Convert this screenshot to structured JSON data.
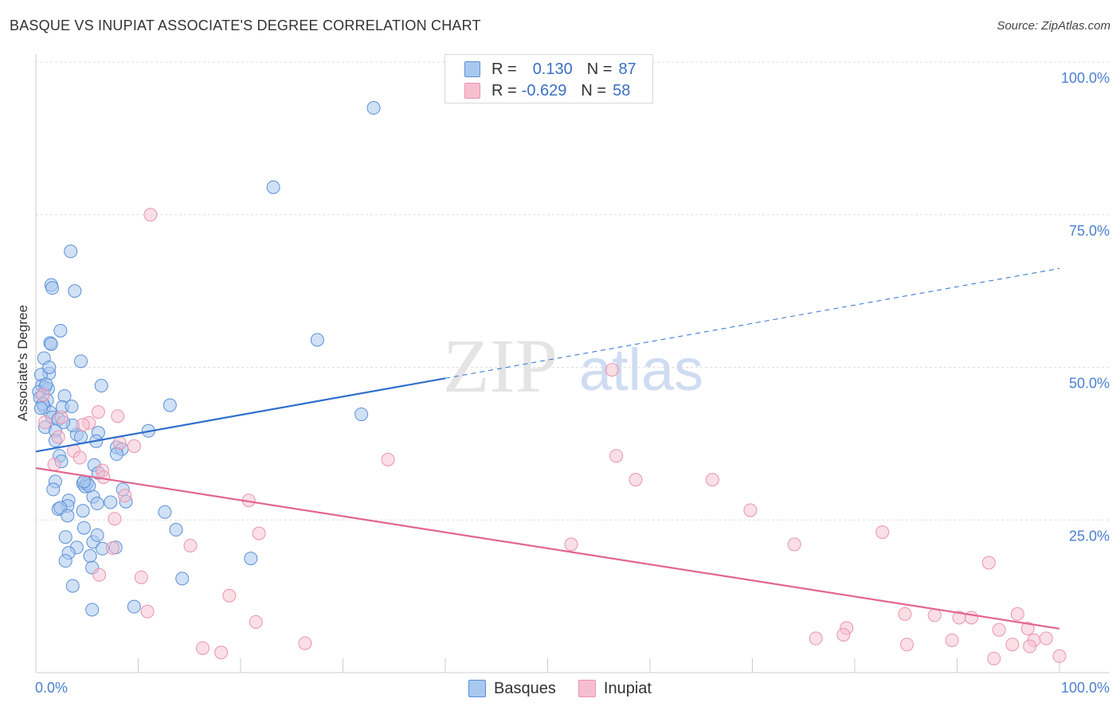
{
  "title": "BASQUE VS INUPIAT ASSOCIATE'S DEGREE CORRELATION CHART",
  "source": "Source: ZipAtlas.com",
  "watermark": {
    "zip": "ZIP",
    "atlas": "atlas"
  },
  "legend": {
    "rows": [
      {
        "r_label": "R =",
        "r_value": "0.130",
        "n_label": "N =",
        "n_value": "87"
      },
      {
        "r_label": "R =",
        "r_value": "-0.629",
        "n_label": "N =",
        "n_value": "58"
      }
    ]
  },
  "colors": {
    "basques_fill": "#a9c8ef",
    "basques_stroke": "#5b8fd6",
    "basques_line": "#2f6fcc",
    "inupiat_fill": "#f6bfd0",
    "inupiat_stroke": "#ea93ae",
    "inupiat_line": "#e2668f",
    "axis_text": "#4a7fd0",
    "grid": "#dedede"
  },
  "chart_data": {
    "type": "scatter",
    "title": "BASQUE VS INUPIAT ASSOCIATE'S DEGREE CORRELATION CHART",
    "xlabel": "",
    "ylabel": "Associate's Degree",
    "xlim": [
      0,
      100
    ],
    "ylim": [
      0,
      100
    ],
    "x_tick_labels": [
      "0.0%",
      "100.0%"
    ],
    "y_tick_labels": [
      "25.0%",
      "50.0%",
      "75.0%",
      "100.0%"
    ],
    "y_ticks": [
      25,
      50,
      75,
      100
    ],
    "grid": true,
    "series": [
      {
        "name": "Basques",
        "r": 0.13,
        "n": 87,
        "trend": {
          "x0": 0,
          "y0": 36.2,
          "x1": 40,
          "y1": 48.2,
          "dash_to_x": 100,
          "dash_to_y": 66.2
        },
        "points": [
          [
            33,
            92.5
          ],
          [
            23.2,
            79.5
          ],
          [
            3.4,
            69
          ],
          [
            1.5,
            63.5
          ],
          [
            1.6,
            63
          ],
          [
            3.8,
            62.5
          ],
          [
            2.4,
            56
          ],
          [
            1.4,
            54
          ],
          [
            1.5,
            53.8
          ],
          [
            27.5,
            54.5
          ],
          [
            0.8,
            51.5
          ],
          [
            4.4,
            51
          ],
          [
            1.3,
            49
          ],
          [
            0.5,
            48.8
          ],
          [
            0.6,
            47
          ],
          [
            0.9,
            46.7
          ],
          [
            6.4,
            47
          ],
          [
            1.2,
            46.5
          ],
          [
            0.3,
            46
          ],
          [
            2.8,
            45.3
          ],
          [
            0.4,
            45
          ],
          [
            1.1,
            44.6
          ],
          [
            13.1,
            43.8
          ],
          [
            0.8,
            43.5
          ],
          [
            1.4,
            42.6
          ],
          [
            2.6,
            43.5
          ],
          [
            3.5,
            43.6
          ],
          [
            1.6,
            41.8
          ],
          [
            2.2,
            41.5
          ],
          [
            31.8,
            42.3
          ],
          [
            0.9,
            40.2
          ],
          [
            1.9,
            39.6
          ],
          [
            11,
            39.6
          ],
          [
            4,
            39
          ],
          [
            4.4,
            38.6
          ],
          [
            6.1,
            39.3
          ],
          [
            1.9,
            38
          ],
          [
            5.9,
            37.9
          ],
          [
            7.9,
            36.9
          ],
          [
            8.4,
            36.6
          ],
          [
            7.9,
            35.8
          ],
          [
            2.3,
            35.5
          ],
          [
            2.5,
            34.6
          ],
          [
            5.7,
            34
          ],
          [
            6.1,
            32.7
          ],
          [
            1.9,
            31.3
          ],
          [
            4.6,
            31
          ],
          [
            4.8,
            30.5
          ],
          [
            5,
            31
          ],
          [
            1.7,
            30
          ],
          [
            8.5,
            30
          ],
          [
            3.2,
            28.2
          ],
          [
            5.6,
            28.8
          ],
          [
            6,
            27.7
          ],
          [
            8.8,
            28
          ],
          [
            3.1,
            27.3
          ],
          [
            2.2,
            26.8
          ],
          [
            2.4,
            27
          ],
          [
            12.6,
            26.3
          ],
          [
            4.6,
            26.5
          ],
          [
            3.1,
            25.7
          ],
          [
            4.7,
            23.7
          ],
          [
            13.7,
            23.4
          ],
          [
            2.9,
            22.2
          ],
          [
            5.6,
            21.4
          ],
          [
            4,
            20.5
          ],
          [
            6.5,
            20.3
          ],
          [
            7.8,
            20.5
          ],
          [
            3.2,
            19.6
          ],
          [
            5.3,
            19.1
          ],
          [
            21,
            18.7
          ],
          [
            2.9,
            18.3
          ],
          [
            5.5,
            17.2
          ],
          [
            14.3,
            15.4
          ],
          [
            3.6,
            14.2
          ],
          [
            9.6,
            10.8
          ],
          [
            5.5,
            10.3
          ],
          [
            1.3,
            50
          ],
          [
            0.7,
            44
          ],
          [
            3.6,
            40.5
          ],
          [
            7.3,
            27.9
          ],
          [
            2.7,
            41
          ],
          [
            5.2,
            30.6
          ],
          [
            4.7,
            31.3
          ],
          [
            0.5,
            43.3
          ],
          [
            1.0,
            47.2
          ],
          [
            6.0,
            22.5
          ]
        ]
      },
      {
        "name": "Inupiat",
        "r": -0.629,
        "n": 58,
        "trend": {
          "x0": 0,
          "y0": 33.5,
          "x1": 100,
          "y1": 7.2
        },
        "points": [
          [
            11.2,
            75
          ],
          [
            56.3,
            49.6
          ],
          [
            0.7,
            45.5
          ],
          [
            0.9,
            41
          ],
          [
            6.1,
            42.7
          ],
          [
            8,
            42
          ],
          [
            2.5,
            41.8
          ],
          [
            5.2,
            40.9
          ],
          [
            4.6,
            40.6
          ],
          [
            2.2,
            38.6
          ],
          [
            9.6,
            37.1
          ],
          [
            3.7,
            36.3
          ],
          [
            1.8,
            34.1
          ],
          [
            4.3,
            35.2
          ],
          [
            34.4,
            34.9
          ],
          [
            56.7,
            35.5
          ],
          [
            6.5,
            33.1
          ],
          [
            58.6,
            31.6
          ],
          [
            66.1,
            31.6
          ],
          [
            6.6,
            32
          ],
          [
            8.7,
            29
          ],
          [
            20.8,
            28.2
          ],
          [
            69.8,
            26.6
          ],
          [
            7.7,
            25.2
          ],
          [
            21.8,
            22.8
          ],
          [
            82.7,
            23
          ],
          [
            7.5,
            20.4
          ],
          [
            15.1,
            20.8
          ],
          [
            52.3,
            21
          ],
          [
            74.1,
            21
          ],
          [
            93.1,
            18
          ],
          [
            10.3,
            15.6
          ],
          [
            6.2,
            16
          ],
          [
            18.9,
            12.6
          ],
          [
            10.9,
            10
          ],
          [
            21.5,
            8.3
          ],
          [
            84.9,
            9.6
          ],
          [
            87.8,
            9.4
          ],
          [
            90.2,
            9
          ],
          [
            91.4,
            9
          ],
          [
            95.9,
            9.6
          ],
          [
            79.2,
            7.3
          ],
          [
            94.1,
            7
          ],
          [
            96.9,
            7.2
          ],
          [
            16.3,
            4
          ],
          [
            18.1,
            3.3
          ],
          [
            26.3,
            4.8
          ],
          [
            76.2,
            5.6
          ],
          [
            78.9,
            6.2
          ],
          [
            85.1,
            4.6
          ],
          [
            89.5,
            5.3
          ],
          [
            93.6,
            2.3
          ],
          [
            95.4,
            4.6
          ],
          [
            97.5,
            5.3
          ],
          [
            98.7,
            5.6
          ],
          [
            100,
            2.7
          ],
          [
            97.1,
            4.3
          ],
          [
            8.2,
            37.6
          ]
        ]
      }
    ]
  }
}
